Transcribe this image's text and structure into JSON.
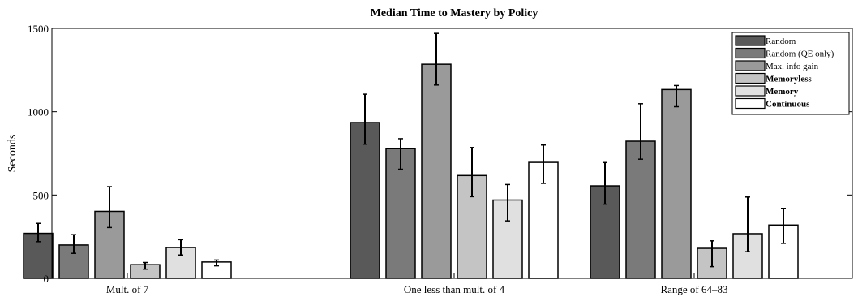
{
  "chart_data": {
    "type": "bar",
    "title": "Median Time to Mastery by Policy",
    "xlabel": "",
    "ylabel": "Seconds",
    "ylim": [
      0,
      1500
    ],
    "yticks": [
      0,
      500,
      1000,
      1500
    ],
    "grid": false,
    "legend_position": "top-right",
    "categories": [
      "Mult. of 7",
      "One less than mult. of 4",
      "Range of 64–83"
    ],
    "series": [
      {
        "name": "Random",
        "color": "#595959",
        "bold": false,
        "values": [
          270,
          935,
          555
        ],
        "error_low": [
          220,
          805,
          445
        ],
        "error_high": [
          330,
          1105,
          695
        ]
      },
      {
        "name": "Random (QE only)",
        "color": "#7a7a7a",
        "bold": false,
        "values": [
          200,
          778,
          823
        ],
        "error_low": [
          150,
          655,
          715
        ],
        "error_high": [
          262,
          838,
          1048
        ]
      },
      {
        "name": "Max. info gain",
        "color": "#9a9a9a",
        "bold": false,
        "values": [
          402,
          1285,
          1133
        ],
        "error_low": [
          305,
          1160,
          1030
        ],
        "error_high": [
          550,
          1470,
          1157
        ]
      },
      {
        "name": "Memoryless",
        "color": "#c4c4c4",
        "bold": true,
        "values": [
          82,
          617,
          180
        ],
        "error_low": [
          55,
          490,
          70
        ],
        "error_high": [
          95,
          785,
          225
        ]
      },
      {
        "name": "Memory",
        "color": "#e0e0e0",
        "bold": true,
        "values": [
          185,
          470,
          268
        ],
        "error_low": [
          140,
          345,
          160
        ],
        "error_high": [
          232,
          563,
          488
        ]
      },
      {
        "name": "Continuous",
        "color": "#ffffff",
        "bold": true,
        "values": [
          98,
          696,
          320
        ],
        "error_low": [
          75,
          570,
          210
        ],
        "error_high": [
          110,
          800,
          420
        ]
      }
    ]
  }
}
